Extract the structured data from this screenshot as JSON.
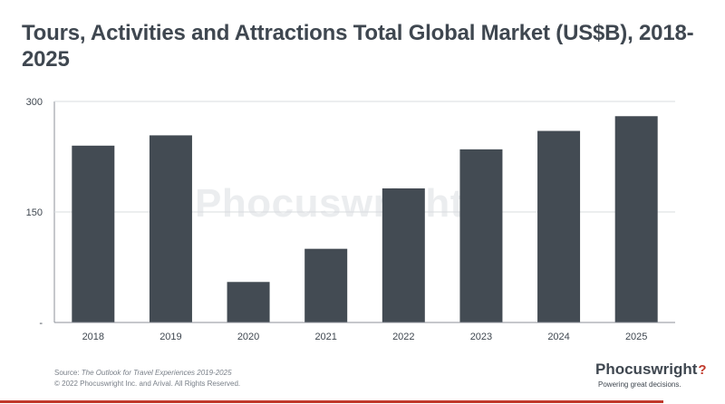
{
  "title": "Tours, Activities and Attractions Total Global Market (US$B), 2018-2025",
  "watermark": "Phocuswright",
  "footer": {
    "source_prefix": "Source: ",
    "source_title": "The Outlook for Travel Experiences 2019-2025",
    "copyright": "© 2022 Phocuswright Inc. and Arival. All Rights Reserved."
  },
  "logo": {
    "name": "Phocuswright",
    "mark": "?",
    "tagline": "Powering great decisions."
  },
  "colors": {
    "bar": "#434b53",
    "title": "#3f4750",
    "accent": "#c0392b",
    "grid": "#d9dcdf"
  },
  "chart_data": {
    "type": "bar",
    "title": "Tours, Activities and Attractions Total Global Market (US$B), 2018-2025",
    "categories": [
      "2018",
      "2019",
      "2020",
      "2021",
      "2022",
      "2023",
      "2024",
      "2025"
    ],
    "values": [
      240,
      254,
      55,
      100,
      182,
      235,
      260,
      280
    ],
    "ylim": [
      0,
      300
    ],
    "yticks": [
      0,
      150,
      300
    ],
    "ytick_labels": [
      "-",
      "150",
      "300"
    ],
    "xlabel": "",
    "ylabel": "",
    "grid": true
  }
}
